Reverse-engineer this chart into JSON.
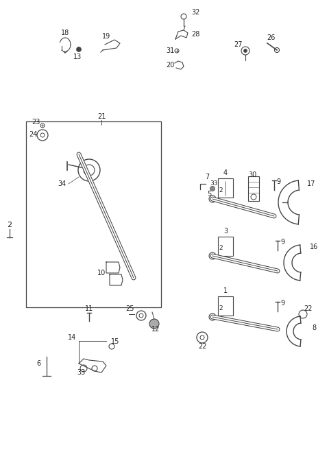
{
  "bg_color": "#ffffff",
  "line_color": "#444444",
  "text_color": "#222222",
  "figsize": [
    4.8,
    6.56
  ],
  "dpi": 100
}
